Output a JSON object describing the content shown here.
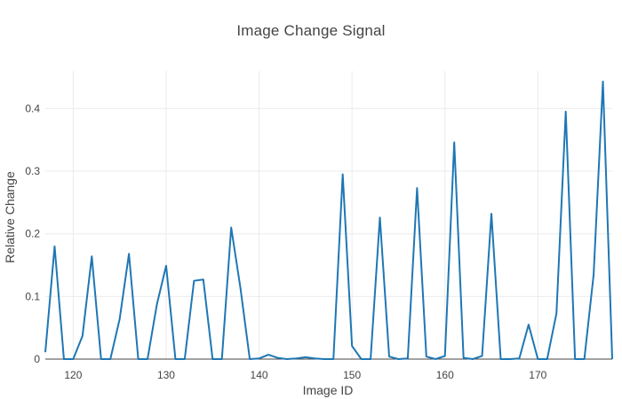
{
  "chart_data": {
    "type": "line",
    "title": "Image Change Signal",
    "xlabel": "Image ID",
    "ylabel": "Relative Change",
    "xlim": [
      117,
      178
    ],
    "ylim": [
      0,
      0.46
    ],
    "x_ticks": [
      120,
      130,
      140,
      150,
      160,
      170
    ],
    "x_tick_labels": [
      "120",
      "130",
      "140",
      "150",
      "160",
      "170"
    ],
    "y_ticks": [
      0,
      0.1,
      0.2,
      0.3,
      0.4
    ],
    "y_tick_labels": [
      "0",
      "0.1",
      "0.2",
      "0.3",
      "0.4"
    ],
    "grid": true,
    "legend": "none",
    "series": [
      {
        "color": "#1f77b4",
        "x": [
          117,
          118,
          119,
          120,
          121,
          122,
          123,
          124,
          125,
          126,
          127,
          128,
          129,
          130,
          131,
          132,
          133,
          134,
          135,
          136,
          137,
          138,
          139,
          140,
          141,
          142,
          143,
          144,
          145,
          146,
          147,
          148,
          149,
          150,
          151,
          152,
          153,
          154,
          155,
          156,
          157,
          158,
          159,
          160,
          161,
          162,
          163,
          164,
          165,
          166,
          167,
          168,
          169,
          170,
          171,
          172,
          173,
          174,
          175,
          176,
          177,
          178
        ],
        "values": [
          0.011,
          0.18,
          0.0,
          0.0,
          0.037,
          0.164,
          0.0,
          0.0,
          0.064,
          0.168,
          0.0,
          0.0,
          0.087,
          0.149,
          0.0,
          0.0,
          0.125,
          0.127,
          0.0,
          0.0,
          0.21,
          0.113,
          0.0,
          0.001,
          0.007,
          0.002,
          0.0,
          0.001,
          0.003,
          0.001,
          0.0,
          0.0,
          0.295,
          0.021,
          0.0,
          0.0,
          0.226,
          0.004,
          0.0,
          0.001,
          0.273,
          0.004,
          0.0,
          0.005,
          0.346,
          0.002,
          0.0,
          0.005,
          0.232,
          0.0,
          0.0,
          0.001,
          0.055,
          0.0,
          0.0,
          0.073,
          0.395,
          0.0,
          0.0,
          0.135,
          0.443,
          0.0
        ]
      }
    ]
  }
}
